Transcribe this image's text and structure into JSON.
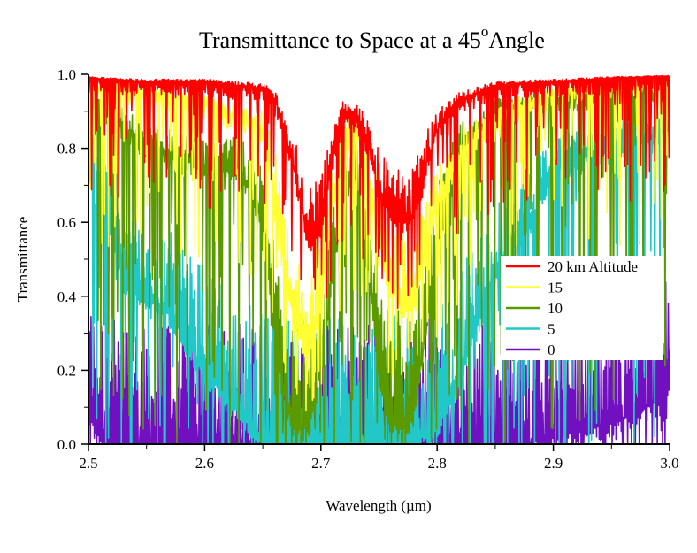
{
  "chart_data": {
    "type": "line",
    "title_main": "Transmittance to Space at a 45",
    "title_sup": "o",
    "title_end": "Angle",
    "xlabel": "Wavelength (µm)",
    "ylabel": "Transmittance",
    "xlim": [
      2.5,
      3.0
    ],
    "ylim": [
      0.0,
      1.0
    ],
    "xticks": [
      "2.5",
      "2.6",
      "2.7",
      "2.8",
      "2.9",
      "3.0"
    ],
    "yticks": [
      "0.0",
      "0.2",
      "0.4",
      "0.6",
      "0.8",
      "1.0"
    ],
    "legend_position": "right-center",
    "series": [
      {
        "name": "20 km Altitude",
        "color": "#ff0000",
        "depth": 0.35,
        "x": [
          2.5,
          2.55,
          2.6,
          2.655,
          2.665,
          2.68,
          2.69,
          2.7,
          2.71,
          2.72,
          2.73,
          2.74,
          2.75,
          2.76,
          2.77,
          2.78,
          2.79,
          2.8,
          2.82,
          2.85,
          2.9,
          2.95,
          3.0
        ],
        "y": [
          0.99,
          0.98,
          0.98,
          0.96,
          0.9,
          0.7,
          0.55,
          0.6,
          0.78,
          0.9,
          0.88,
          0.82,
          0.68,
          0.62,
          0.6,
          0.62,
          0.75,
          0.85,
          0.93,
          0.97,
          0.98,
          0.99,
          0.995
        ]
      },
      {
        "name": "15",
        "color": "#ffff33",
        "depth": 0.45,
        "x": [
          2.5,
          2.55,
          2.6,
          2.65,
          2.66,
          2.67,
          2.68,
          2.69,
          2.7,
          2.71,
          2.72,
          2.73,
          2.74,
          2.75,
          2.76,
          2.77,
          2.78,
          2.79,
          2.8,
          2.82,
          2.85,
          2.9,
          2.95,
          3.0
        ],
        "y": [
          0.97,
          0.95,
          0.92,
          0.85,
          0.7,
          0.45,
          0.3,
          0.25,
          0.4,
          0.65,
          0.82,
          0.85,
          0.75,
          0.55,
          0.42,
          0.38,
          0.4,
          0.52,
          0.65,
          0.78,
          0.88,
          0.95,
          0.97,
          0.98
        ]
      },
      {
        "name": "10",
        "color": "#5a9a00",
        "depth": 0.9,
        "x": [
          2.5,
          2.55,
          2.6,
          2.63,
          2.65,
          2.66,
          2.67,
          2.68,
          2.69,
          2.7,
          2.71,
          2.72,
          2.73,
          2.74,
          2.75,
          2.76,
          2.77,
          2.78,
          2.79,
          2.8,
          2.82,
          2.85,
          2.9,
          2.95,
          3.0
        ],
        "y": [
          0.95,
          0.8,
          0.75,
          0.75,
          0.6,
          0.3,
          0.1,
          0.04,
          0.05,
          0.2,
          0.45,
          0.7,
          0.72,
          0.5,
          0.2,
          0.06,
          0.04,
          0.08,
          0.3,
          0.55,
          0.8,
          0.9,
          0.93,
          0.95,
          0.97
        ]
      },
      {
        "name": "5",
        "color": "#22c8c8",
        "depth": 1.0,
        "x": [
          2.5,
          2.51,
          2.53,
          2.55,
          2.57,
          2.6,
          2.62,
          2.64,
          2.65,
          2.66,
          2.7,
          2.75,
          2.78,
          2.8,
          2.82,
          2.85,
          2.88,
          2.9,
          2.95,
          3.0
        ],
        "y": [
          0.8,
          0.7,
          0.45,
          0.4,
          0.35,
          0.2,
          0.12,
          0.05,
          0.0,
          0.0,
          0.0,
          0.0,
          0.0,
          0.05,
          0.2,
          0.45,
          0.6,
          0.75,
          0.8,
          0.85
        ]
      },
      {
        "name": "0",
        "color": "#7010c0",
        "depth": 1.0,
        "x": [
          2.5,
          2.505,
          2.51,
          2.515,
          2.52,
          2.55,
          2.6,
          2.7,
          2.8,
          2.88,
          2.9,
          2.92,
          2.95,
          2.97,
          2.99,
          3.0
        ],
        "y": [
          0.1,
          0.05,
          0.02,
          0.0,
          0.0,
          0.0,
          0.0,
          0.0,
          0.0,
          0.0,
          0.03,
          0.03,
          0.06,
          0.08,
          0.12,
          0.18
        ]
      }
    ]
  }
}
